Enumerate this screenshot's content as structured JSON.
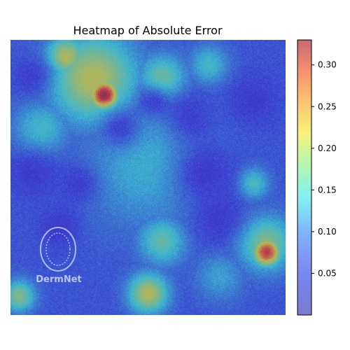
{
  "chart_data": {
    "type": "heatmap",
    "title": "Heatmap of Absolute Error",
    "xlabel": "",
    "ylabel": "",
    "grid": false,
    "colormap": "jet",
    "overlay_alpha": 0.5,
    "color_range": [
      0.0,
      0.33
    ],
    "colorbar": {
      "ticks": [
        0.05,
        0.1,
        0.15,
        0.2,
        0.25,
        0.3
      ],
      "tick_labels": [
        "0.05",
        "0.10",
        "0.15",
        "0.20",
        "0.25",
        "0.30"
      ]
    },
    "base_level": 0.06,
    "hotspots": [
      {
        "name": "upper-red-spot",
        "u": 0.34,
        "v": 0.2,
        "value": 0.33,
        "spread": 0.035
      },
      {
        "name": "upper-orange-band",
        "u": 0.3,
        "v": 0.14,
        "value": 0.2,
        "spread": 0.11
      },
      {
        "name": "top-left-yellow",
        "u": 0.2,
        "v": 0.06,
        "value": 0.2,
        "spread": 0.05
      },
      {
        "name": "top-center-green",
        "u": 0.55,
        "v": 0.14,
        "value": 0.16,
        "spread": 0.06
      },
      {
        "name": "top-right-green",
        "u": 0.72,
        "v": 0.09,
        "value": 0.13,
        "spread": 0.05
      },
      {
        "name": "upper-left-cyan",
        "u": 0.11,
        "v": 0.32,
        "value": 0.13,
        "spread": 0.07
      },
      {
        "name": "center-cyan-band",
        "u": 0.5,
        "v": 0.45,
        "value": 0.12,
        "spread": 0.16
      },
      {
        "name": "right-mid-green",
        "u": 0.88,
        "v": 0.52,
        "value": 0.14,
        "spread": 0.04
      },
      {
        "name": "right-red-spot",
        "u": 0.93,
        "v": 0.77,
        "value": 0.29,
        "spread": 0.035
      },
      {
        "name": "right-yellow-halo",
        "u": 0.93,
        "v": 0.74,
        "value": 0.17,
        "spread": 0.07
      },
      {
        "name": "lower-center-yellow",
        "u": 0.5,
        "v": 0.92,
        "value": 0.2,
        "spread": 0.05
      },
      {
        "name": "lower-mid-green",
        "u": 0.55,
        "v": 0.73,
        "value": 0.15,
        "spread": 0.06
      },
      {
        "name": "lower-left-yellow",
        "u": 0.03,
        "v": 0.93,
        "value": 0.17,
        "spread": 0.04
      },
      {
        "name": "bottom-right-cyan",
        "u": 0.76,
        "v": 0.86,
        "value": 0.11,
        "spread": 0.06
      }
    ],
    "cold_spots": [
      {
        "u": 0.08,
        "v": 0.48,
        "value": 0.03,
        "spread": 0.06
      },
      {
        "u": 0.25,
        "v": 0.52,
        "value": 0.03,
        "spread": 0.05
      },
      {
        "u": 0.4,
        "v": 0.32,
        "value": 0.03,
        "spread": 0.05
      },
      {
        "u": 0.65,
        "v": 0.28,
        "value": 0.03,
        "spread": 0.06
      },
      {
        "u": 0.7,
        "v": 0.48,
        "value": 0.02,
        "spread": 0.08
      },
      {
        "u": 0.88,
        "v": 0.22,
        "value": 0.03,
        "spread": 0.06
      },
      {
        "u": 0.08,
        "v": 0.13,
        "value": 0.03,
        "spread": 0.05
      },
      {
        "u": 0.52,
        "v": 0.22,
        "value": 0.03,
        "spread": 0.04
      },
      {
        "u": 0.18,
        "v": 0.68,
        "value": 0.03,
        "spread": 0.05
      },
      {
        "u": 0.75,
        "v": 0.65,
        "value": 0.03,
        "spread": 0.06
      }
    ],
    "watermark": {
      "text": "DermNet"
    }
  }
}
